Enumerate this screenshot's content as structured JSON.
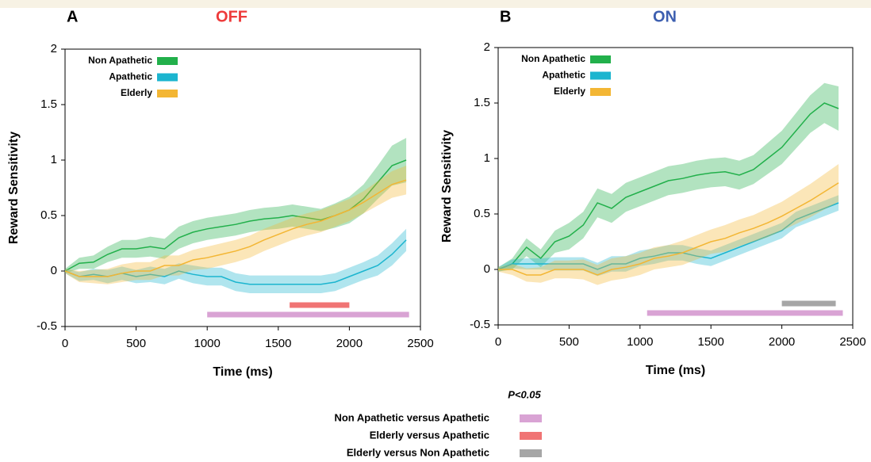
{
  "chart_data": [
    {
      "type": "line",
      "panel": "A",
      "title": "OFF",
      "title_color": "#ee3b3b",
      "x_label": "Time (ms)",
      "y_label": "Reward Sensitivity",
      "x": [
        0,
        100,
        200,
        300,
        400,
        500,
        600,
        700,
        800,
        900,
        1000,
        1100,
        1200,
        1300,
        1400,
        1500,
        1600,
        1700,
        1800,
        1900,
        2000,
        2100,
        2200,
        2300,
        2400
      ],
      "series": [
        {
          "name": "Non Apathetic",
          "color": "#22b04b",
          "values": [
            0,
            0.07,
            0.08,
            0.15,
            0.2,
            0.2,
            0.22,
            0.2,
            0.3,
            0.35,
            0.38,
            0.4,
            0.42,
            0.45,
            0.47,
            0.48,
            0.5,
            0.48,
            0.46,
            0.5,
            0.55,
            0.65,
            0.8,
            0.95,
            1.0
          ],
          "error": [
            0.02,
            0.05,
            0.06,
            0.07,
            0.08,
            0.08,
            0.09,
            0.09,
            0.1,
            0.1,
            0.1,
            0.1,
            0.1,
            0.1,
            0.1,
            0.1,
            0.1,
            0.1,
            0.1,
            0.11,
            0.12,
            0.13,
            0.15,
            0.18,
            0.2
          ]
        },
        {
          "name": "Apathetic",
          "color": "#1cb5cf",
          "values": [
            0,
            -0.05,
            -0.03,
            -0.05,
            -0.02,
            -0.05,
            -0.03,
            -0.05,
            0,
            -0.03,
            -0.05,
            -0.05,
            -0.1,
            -0.12,
            -0.12,
            -0.12,
            -0.12,
            -0.12,
            -0.12,
            -0.1,
            -0.05,
            0,
            0.05,
            0.15,
            0.28
          ],
          "error": [
            0.02,
            0.04,
            0.05,
            0.06,
            0.06,
            0.06,
            0.07,
            0.07,
            0.07,
            0.08,
            0.08,
            0.08,
            0.08,
            0.08,
            0.08,
            0.08,
            0.08,
            0.08,
            0.08,
            0.08,
            0.08,
            0.08,
            0.09,
            0.1,
            0.1
          ]
        },
        {
          "name": "Elderly",
          "color": "#f3b634",
          "values": [
            0,
            -0.05,
            -0.05,
            -0.05,
            -0.02,
            0,
            0,
            0.05,
            0.05,
            0.1,
            0.12,
            0.15,
            0.18,
            0.22,
            0.28,
            0.33,
            0.38,
            0.42,
            0.45,
            0.5,
            0.55,
            0.62,
            0.7,
            0.78,
            0.82
          ],
          "error": [
            0.02,
            0.05,
            0.06,
            0.07,
            0.08,
            0.08,
            0.08,
            0.09,
            0.09,
            0.09,
            0.1,
            0.1,
            0.1,
            0.1,
            0.1,
            0.1,
            0.1,
            0.1,
            0.1,
            0.1,
            0.1,
            0.1,
            0.11,
            0.12,
            0.13
          ]
        }
      ],
      "significance": [
        {
          "color": "#d9a3d4",
          "start": 1000,
          "end": 2420
        },
        {
          "color": "#f07474",
          "start": 1580,
          "end": 2000
        }
      ],
      "xlim": [
        0,
        2500
      ],
      "xticks": [
        0,
        500,
        1000,
        1500,
        2000,
        2500
      ],
      "ylim": [
        -0.5,
        2
      ],
      "yticks": [
        -0.5,
        0,
        0.5,
        1,
        1.5,
        2
      ]
    },
    {
      "type": "line",
      "panel": "B",
      "title": "ON",
      "title_color": "#3d5fb0",
      "x_label": "Time (ms)",
      "y_label": "Reward Sensitivity",
      "x": [
        0,
        100,
        200,
        300,
        400,
        500,
        600,
        700,
        800,
        900,
        1000,
        1100,
        1200,
        1300,
        1400,
        1500,
        1600,
        1700,
        1800,
        1900,
        2000,
        2100,
        2200,
        2300,
        2400
      ],
      "series": [
        {
          "name": "Non Apathetic",
          "color": "#22b04b",
          "values": [
            0,
            0.05,
            0.2,
            0.1,
            0.25,
            0.3,
            0.4,
            0.6,
            0.55,
            0.65,
            0.7,
            0.75,
            0.8,
            0.82,
            0.85,
            0.87,
            0.88,
            0.85,
            0.9,
            1.0,
            1.1,
            1.25,
            1.4,
            1.5,
            1.45
          ],
          "error": [
            0.02,
            0.05,
            0.08,
            0.08,
            0.1,
            0.12,
            0.12,
            0.13,
            0.13,
            0.13,
            0.13,
            0.13,
            0.13,
            0.13,
            0.13,
            0.13,
            0.13,
            0.13,
            0.13,
            0.14,
            0.15,
            0.16,
            0.17,
            0.18,
            0.2
          ]
        },
        {
          "name": "Apathetic",
          "color": "#1cb5cf",
          "values": [
            0,
            0.05,
            0.05,
            0.05,
            0.05,
            0.05,
            0.05,
            0,
            0.05,
            0.05,
            0.1,
            0.12,
            0.15,
            0.15,
            0.12,
            0.1,
            0.15,
            0.2,
            0.25,
            0.3,
            0.35,
            0.45,
            0.5,
            0.55,
            0.6
          ],
          "error": [
            0.02,
            0.04,
            0.05,
            0.05,
            0.06,
            0.06,
            0.06,
            0.06,
            0.07,
            0.07,
            0.07,
            0.07,
            0.07,
            0.07,
            0.07,
            0.07,
            0.07,
            0.07,
            0.07,
            0.07,
            0.07,
            0.07,
            0.07,
            0.07,
            0.07
          ]
        },
        {
          "name": "Elderly",
          "color": "#f3b634",
          "values": [
            0,
            0,
            -0.05,
            -0.05,
            0,
            0,
            0,
            -0.05,
            0,
            0.02,
            0.05,
            0.1,
            0.12,
            0.15,
            0.2,
            0.25,
            0.28,
            0.33,
            0.37,
            0.42,
            0.48,
            0.55,
            0.62,
            0.7,
            0.78
          ],
          "error": [
            0.02,
            0.05,
            0.06,
            0.07,
            0.08,
            0.08,
            0.09,
            0.09,
            0.1,
            0.1,
            0.1,
            0.1,
            0.1,
            0.11,
            0.11,
            0.11,
            0.12,
            0.12,
            0.12,
            0.13,
            0.13,
            0.14,
            0.15,
            0.16,
            0.17
          ]
        }
      ],
      "significance": [
        {
          "color": "#d9a3d4",
          "start": 1050,
          "end": 2430
        },
        {
          "color": "#a6a6a6",
          "start": 2000,
          "end": 2380
        }
      ],
      "xlim": [
        0,
        2500
      ],
      "xticks": [
        0,
        500,
        1000,
        1500,
        2000,
        2500
      ],
      "ylim": [
        -0.5,
        2
      ],
      "yticks": [
        -0.5,
        0,
        0.5,
        1,
        1.5,
        2
      ]
    }
  ],
  "significance_legend": {
    "title": "P<0.05",
    "items": [
      {
        "label": "Non Apathetic versus Apathetic",
        "color": "#d9a3d4"
      },
      {
        "label": "Elderly versus Apathetic",
        "color": "#f07474"
      },
      {
        "label": "Elderly versus Non Apathetic",
        "color": "#a6a6a6"
      }
    ]
  }
}
